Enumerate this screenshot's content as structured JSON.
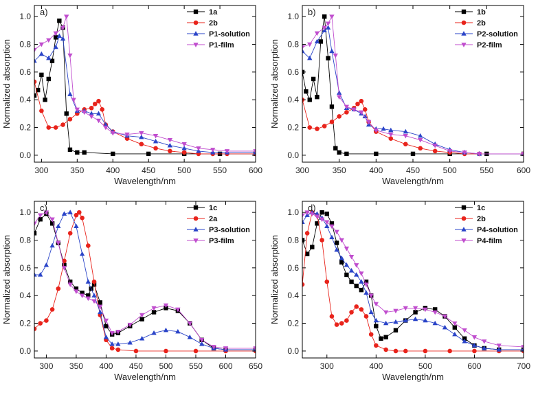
{
  "chart_data": [
    {
      "type": "line",
      "panel_label": "a)",
      "xlabel": "Wavelength/nm",
      "ylabel": "Normalized absorption",
      "xlim": [
        290,
        600
      ],
      "ylim": [
        -0.05,
        1.08
      ],
      "xticks": [
        300,
        350,
        400,
        450,
        500,
        550,
        600
      ],
      "yticks": [
        0.0,
        0.2,
        0.4,
        0.6,
        0.8,
        1.0
      ],
      "legend_position": "top-right",
      "series": [
        {
          "name": "1a",
          "color": "#000000",
          "marker": "square",
          "x": [
            290,
            295,
            300,
            305,
            310,
            315,
            320,
            325,
            330,
            335,
            340,
            350,
            360,
            400,
            450,
            500,
            550,
            600
          ],
          "y": [
            0.43,
            0.47,
            0.58,
            0.4,
            0.55,
            0.68,
            0.85,
            0.97,
            0.92,
            0.3,
            0.04,
            0.02,
            0.02,
            0.01,
            0.01,
            0.01,
            0.01,
            0.01
          ]
        },
        {
          "name": "2b",
          "color": "#e8231b",
          "marker": "circle",
          "x": [
            290,
            300,
            310,
            320,
            330,
            340,
            350,
            360,
            370,
            375,
            380,
            385,
            390,
            400,
            420,
            440,
            460,
            480,
            500,
            520,
            540,
            560,
            600
          ],
          "y": [
            0.53,
            0.32,
            0.2,
            0.2,
            0.22,
            0.26,
            0.3,
            0.33,
            0.34,
            0.37,
            0.39,
            0.33,
            0.22,
            0.17,
            0.12,
            0.08,
            0.05,
            0.03,
            0.02,
            0.01,
            0.01,
            0.01,
            0.01
          ]
        },
        {
          "name": "P1-solution",
          "color": "#2a44c8",
          "marker": "triangle-up",
          "x": [
            290,
            300,
            310,
            320,
            325,
            330,
            340,
            350,
            360,
            370,
            380,
            390,
            400,
            420,
            440,
            460,
            480,
            500,
            520,
            540,
            560,
            600
          ],
          "y": [
            0.68,
            0.73,
            0.7,
            0.78,
            0.86,
            0.84,
            0.44,
            0.32,
            0.32,
            0.3,
            0.3,
            0.22,
            0.17,
            0.14,
            0.13,
            0.1,
            0.07,
            0.05,
            0.03,
            0.02,
            0.02,
            0.02
          ]
        },
        {
          "name": "P1-film",
          "color": "#c04dce",
          "marker": "triangle-down",
          "x": [
            290,
            300,
            310,
            320,
            330,
            335,
            340,
            345,
            350,
            360,
            370,
            380,
            390,
            400,
            420,
            440,
            460,
            480,
            500,
            520,
            540,
            560,
            600
          ],
          "y": [
            0.76,
            0.8,
            0.83,
            0.88,
            0.92,
            1.0,
            0.72,
            0.4,
            0.33,
            0.31,
            0.28,
            0.25,
            0.2,
            0.16,
            0.15,
            0.16,
            0.14,
            0.11,
            0.08,
            0.05,
            0.04,
            0.03,
            0.03
          ]
        }
      ]
    },
    {
      "type": "line",
      "panel_label": "b)",
      "xlabel": "Wavelength/nm",
      "ylabel": "Normalized absorption",
      "xlim": [
        300,
        600
      ],
      "ylim": [
        -0.05,
        1.08
      ],
      "xticks": [
        300,
        350,
        400,
        450,
        500,
        550,
        600
      ],
      "yticks": [
        0.0,
        0.2,
        0.4,
        0.6,
        0.8,
        1.0
      ],
      "legend_position": "top-right",
      "series": [
        {
          "name": "1b",
          "color": "#000000",
          "marker": "square",
          "x": [
            300,
            305,
            310,
            315,
            320,
            325,
            330,
            335,
            340,
            345,
            350,
            360,
            400,
            450,
            500,
            550,
            600
          ],
          "y": [
            0.6,
            0.46,
            0.4,
            0.55,
            0.42,
            0.82,
            1.0,
            0.7,
            0.35,
            0.05,
            0.02,
            0.01,
            0.01,
            0.01,
            0.01,
            0.01,
            0.01
          ]
        },
        {
          "name": "2b",
          "color": "#e8231b",
          "marker": "circle",
          "x": [
            300,
            310,
            320,
            330,
            340,
            350,
            360,
            370,
            375,
            380,
            385,
            390,
            400,
            420,
            440,
            460,
            480,
            500,
            520,
            540,
            600
          ],
          "y": [
            0.4,
            0.2,
            0.19,
            0.21,
            0.24,
            0.28,
            0.31,
            0.34,
            0.37,
            0.39,
            0.33,
            0.24,
            0.17,
            0.12,
            0.08,
            0.05,
            0.03,
            0.02,
            0.01,
            0.01,
            0.01
          ]
        },
        {
          "name": "P2-solution",
          "color": "#2a44c8",
          "marker": "triangle-up",
          "x": [
            300,
            310,
            320,
            330,
            335,
            340,
            350,
            360,
            370,
            380,
            385,
            390,
            400,
            410,
            420,
            440,
            460,
            480,
            500,
            520,
            540,
            600
          ],
          "y": [
            0.75,
            0.7,
            0.82,
            0.9,
            0.92,
            0.75,
            0.45,
            0.34,
            0.33,
            0.3,
            0.28,
            0.22,
            0.19,
            0.19,
            0.18,
            0.17,
            0.14,
            0.08,
            0.04,
            0.02,
            0.01,
            0.01
          ]
        },
        {
          "name": "P2-film",
          "color": "#c04dce",
          "marker": "triangle-down",
          "x": [
            300,
            310,
            320,
            330,
            335,
            340,
            345,
            350,
            360,
            370,
            380,
            390,
            400,
            420,
            440,
            460,
            480,
            500,
            520,
            540,
            600
          ],
          "y": [
            0.78,
            0.8,
            0.88,
            0.92,
            0.95,
            1.0,
            0.72,
            0.42,
            0.35,
            0.33,
            0.31,
            0.24,
            0.18,
            0.15,
            0.14,
            0.11,
            0.07,
            0.03,
            0.02,
            0.01,
            0.01
          ]
        }
      ]
    },
    {
      "type": "line",
      "panel_label": "c)",
      "xlabel": "Wavelength/nm",
      "ylabel": "Normalized absorption",
      "xlim": [
        280,
        650
      ],
      "ylim": [
        -0.05,
        1.08
      ],
      "xticks": [
        300,
        350,
        400,
        450,
        500,
        550,
        600,
        650
      ],
      "yticks": [
        0.0,
        0.2,
        0.4,
        0.6,
        0.8,
        1.0
      ],
      "legend_position": "top-right",
      "series": [
        {
          "name": "1c",
          "color": "#000000",
          "marker": "square",
          "x": [
            280,
            290,
            300,
            310,
            320,
            330,
            340,
            350,
            360,
            370,
            375,
            380,
            390,
            400,
            410,
            420,
            440,
            460,
            480,
            500,
            520,
            540,
            560,
            580,
            600,
            650
          ],
          "y": [
            0.85,
            0.95,
            0.99,
            0.92,
            0.78,
            0.62,
            0.5,
            0.45,
            0.42,
            0.4,
            0.45,
            0.48,
            0.35,
            0.18,
            0.12,
            0.13,
            0.18,
            0.23,
            0.28,
            0.31,
            0.29,
            0.2,
            0.08,
            0.02,
            0.01,
            0.01
          ]
        },
        {
          "name": "2a",
          "color": "#e8231b",
          "marker": "circle",
          "x": [
            280,
            290,
            300,
            310,
            320,
            330,
            340,
            350,
            355,
            360,
            370,
            380,
            390,
            400,
            410,
            420,
            450,
            500,
            550,
            600,
            650
          ],
          "y": [
            0.16,
            0.2,
            0.22,
            0.3,
            0.45,
            0.65,
            0.85,
            0.98,
            1.0,
            0.96,
            0.76,
            0.5,
            0.26,
            0.08,
            0.02,
            0.01,
            0.0,
            0.0,
            0.0,
            0.0,
            0.0
          ]
        },
        {
          "name": "P3-solution",
          "color": "#2a44c8",
          "marker": "triangle-up",
          "x": [
            280,
            290,
            300,
            310,
            320,
            330,
            340,
            350,
            360,
            370,
            380,
            390,
            400,
            410,
            420,
            440,
            460,
            480,
            500,
            520,
            540,
            560,
            580,
            600,
            650
          ],
          "y": [
            0.55,
            0.55,
            0.62,
            0.76,
            0.9,
            0.99,
            1.0,
            0.9,
            0.7,
            0.5,
            0.4,
            0.28,
            0.1,
            0.05,
            0.05,
            0.06,
            0.09,
            0.13,
            0.15,
            0.14,
            0.1,
            0.05,
            0.02,
            0.01,
            0.01
          ]
        },
        {
          "name": "P3-film",
          "color": "#c04dce",
          "marker": "triangle-down",
          "x": [
            280,
            290,
            300,
            310,
            320,
            330,
            340,
            350,
            360,
            370,
            380,
            390,
            400,
            410,
            420,
            440,
            460,
            480,
            500,
            520,
            540,
            560,
            580,
            600,
            650
          ],
          "y": [
            0.92,
            0.98,
            1.0,
            0.95,
            0.78,
            0.6,
            0.48,
            0.43,
            0.4,
            0.38,
            0.36,
            0.32,
            0.22,
            0.13,
            0.14,
            0.19,
            0.26,
            0.31,
            0.33,
            0.3,
            0.2,
            0.08,
            0.03,
            0.02,
            0.02
          ]
        }
      ]
    },
    {
      "type": "line",
      "panel_label": "d)",
      "xlabel": "Wavelength/nm",
      "ylabel": "Normalized absorption",
      "xlim": [
        250,
        700
      ],
      "ylim": [
        -0.05,
        1.08
      ],
      "xticks": [
        300,
        400,
        500,
        600,
        700
      ],
      "yticks": [
        0.0,
        0.2,
        0.4,
        0.6,
        0.8,
        1.0
      ],
      "legend_position": "top-right",
      "series": [
        {
          "name": "1c",
          "color": "#000000",
          "marker": "square",
          "x": [
            250,
            260,
            270,
            280,
            290,
            300,
            310,
            320,
            330,
            340,
            350,
            360,
            370,
            380,
            390,
            400,
            410,
            420,
            440,
            460,
            480,
            500,
            520,
            540,
            560,
            580,
            600,
            620,
            650,
            700
          ],
          "y": [
            0.8,
            0.7,
            0.75,
            0.92,
            1.0,
            0.99,
            0.92,
            0.78,
            0.64,
            0.55,
            0.5,
            0.47,
            0.44,
            0.5,
            0.4,
            0.18,
            0.09,
            0.1,
            0.15,
            0.22,
            0.28,
            0.31,
            0.3,
            0.25,
            0.17,
            0.09,
            0.04,
            0.02,
            0.01,
            0.01
          ]
        },
        {
          "name": "2b",
          "color": "#e8231b",
          "marker": "circle",
          "x": [
            250,
            260,
            270,
            280,
            290,
            300,
            310,
            320,
            330,
            340,
            350,
            360,
            370,
            380,
            390,
            400,
            420,
            440,
            460,
            500,
            550,
            600,
            650,
            700
          ],
          "y": [
            0.48,
            0.85,
            1.0,
            0.98,
            0.8,
            0.5,
            0.25,
            0.19,
            0.2,
            0.22,
            0.28,
            0.32,
            0.3,
            0.25,
            0.12,
            0.04,
            0.01,
            0.0,
            0.0,
            0.0,
            0.0,
            0.0,
            0.0,
            0.0
          ]
        },
        {
          "name": "P4-solution",
          "color": "#2a44c8",
          "marker": "triangle-up",
          "x": [
            250,
            260,
            270,
            280,
            290,
            300,
            310,
            320,
            330,
            340,
            350,
            360,
            370,
            380,
            390,
            400,
            420,
            440,
            460,
            480,
            500,
            520,
            540,
            560,
            580,
            600,
            620,
            650,
            700
          ],
          "y": [
            0.93,
            0.98,
            1.0,
            0.99,
            0.96,
            0.9,
            0.82,
            0.73,
            0.67,
            0.62,
            0.58,
            0.55,
            0.5,
            0.42,
            0.28,
            0.22,
            0.2,
            0.21,
            0.22,
            0.23,
            0.22,
            0.2,
            0.17,
            0.12,
            0.07,
            0.04,
            0.02,
            0.01,
            0.01
          ]
        },
        {
          "name": "P4-film",
          "color": "#c04dce",
          "marker": "triangle-down",
          "x": [
            250,
            260,
            270,
            280,
            290,
            300,
            310,
            320,
            330,
            340,
            350,
            360,
            370,
            380,
            390,
            400,
            420,
            440,
            460,
            480,
            500,
            520,
            540,
            560,
            580,
            600,
            620,
            650,
            700
          ],
          "y": [
            0.98,
            1.0,
            0.99,
            0.97,
            0.95,
            0.93,
            0.9,
            0.86,
            0.8,
            0.74,
            0.68,
            0.62,
            0.56,
            0.48,
            0.4,
            0.34,
            0.28,
            0.29,
            0.31,
            0.31,
            0.3,
            0.28,
            0.25,
            0.2,
            0.15,
            0.1,
            0.07,
            0.04,
            0.03
          ]
        }
      ]
    }
  ]
}
